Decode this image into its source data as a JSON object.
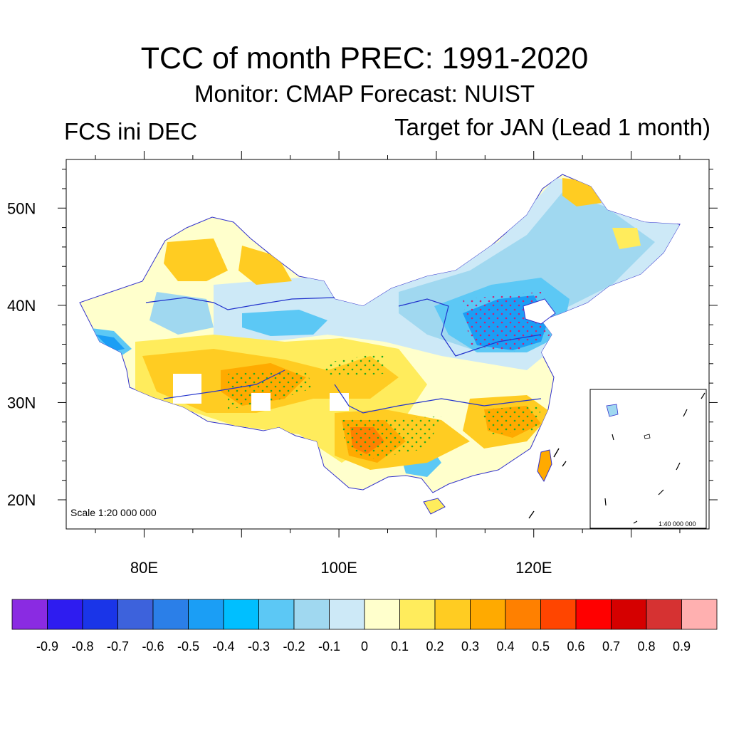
{
  "title": "TCC of month PREC: 1991-2020",
  "subtitle": "Monitor: CMAP   Forecast: NUIST",
  "left_label": "FCS ini DEC",
  "right_label": "Target for JAN (Lead 1 month)",
  "scale_main": "Scale 1:20 000 000",
  "scale_inset": "1:40 000 000",
  "map": {
    "lon_range": [
      72,
      138
    ],
    "lat_range": [
      17,
      55
    ],
    "lon_ticks": [
      "80E",
      "100E",
      "120E"
    ],
    "lat_ticks": [
      "50N",
      "40N",
      "30N",
      "20N"
    ]
  },
  "colorbar": {
    "colors": [
      "#8a2be2",
      "#2e1cf0",
      "#1a35e8",
      "#3d62dc",
      "#2b7fe8",
      "#1b9ef5",
      "#00bfff",
      "#5cc8f5",
      "#a0d8f0",
      "#cde9f7",
      "#ffffcc",
      "#ffec5c",
      "#ffcc22",
      "#ffaa00",
      "#ff8000",
      "#ff4500",
      "#ff0000",
      "#d50000",
      "#d63232",
      "#ffb0b0"
    ],
    "labels": [
      "-0.9",
      "-0.8",
      "-0.7",
      "-0.6",
      "-0.5",
      "-0.4",
      "-0.3",
      "-0.2",
      "-0.1",
      "0",
      "0.1",
      "0.2",
      "0.3",
      "0.4",
      "0.5",
      "0.6",
      "0.7",
      "0.8",
      "0.9"
    ]
  }
}
